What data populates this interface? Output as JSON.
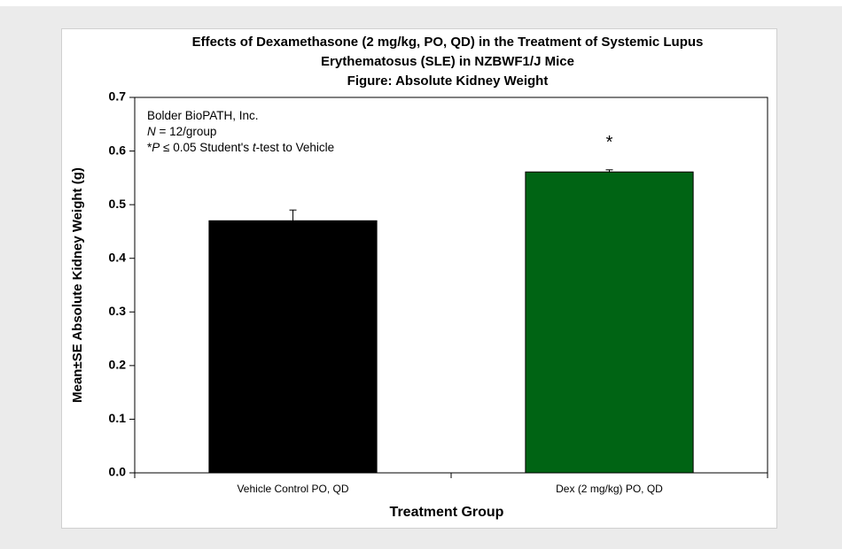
{
  "chart_data": {
    "type": "bar",
    "title": [
      "Effects of Dexamethasone (2 mg/kg, PO, QD) in the Treatment of Systemic Lupus",
      "Erythematosus (SLE) in NZBWF1/J Mice"
    ],
    "subtitle": "Figure: Absolute Kidney Weight",
    "x_label": "Treatment Group",
    "y_label": "Mean±SE Absolute Kidney Weight (g)",
    "annotation": [
      [
        {
          "text": "Bolder BioPATH, Inc.",
          "style": "normal"
        }
      ],
      [
        {
          "text": "N",
          "style": "italic"
        },
        {
          "text": " = 12/group",
          "style": "normal"
        }
      ],
      [
        {
          "text": "*",
          "style": "normal"
        },
        {
          "text": "P",
          "style": "italic"
        },
        {
          "text": " ≤ 0.05 Student's ",
          "style": "normal"
        },
        {
          "text": "t",
          "style": "italic"
        },
        {
          "text": "-test to Vehicle",
          "style": "normal"
        }
      ]
    ],
    "categories": [
      "Vehicle Control PO, QD",
      "Dex (2 mg/kg) PO, QD"
    ],
    "values": [
      0.47,
      0.561
    ],
    "errors": [
      0.02,
      0.004
    ],
    "colors": [
      "#000000",
      "#006414"
    ],
    "significance": [
      null,
      "*"
    ],
    "ylim": [
      0,
      0.7
    ],
    "yticks": [
      {
        "value": 0,
        "label": "0.0"
      },
      0.1,
      0.2,
      0.3,
      0.4,
      0.5,
      0.6,
      0.7
    ]
  }
}
